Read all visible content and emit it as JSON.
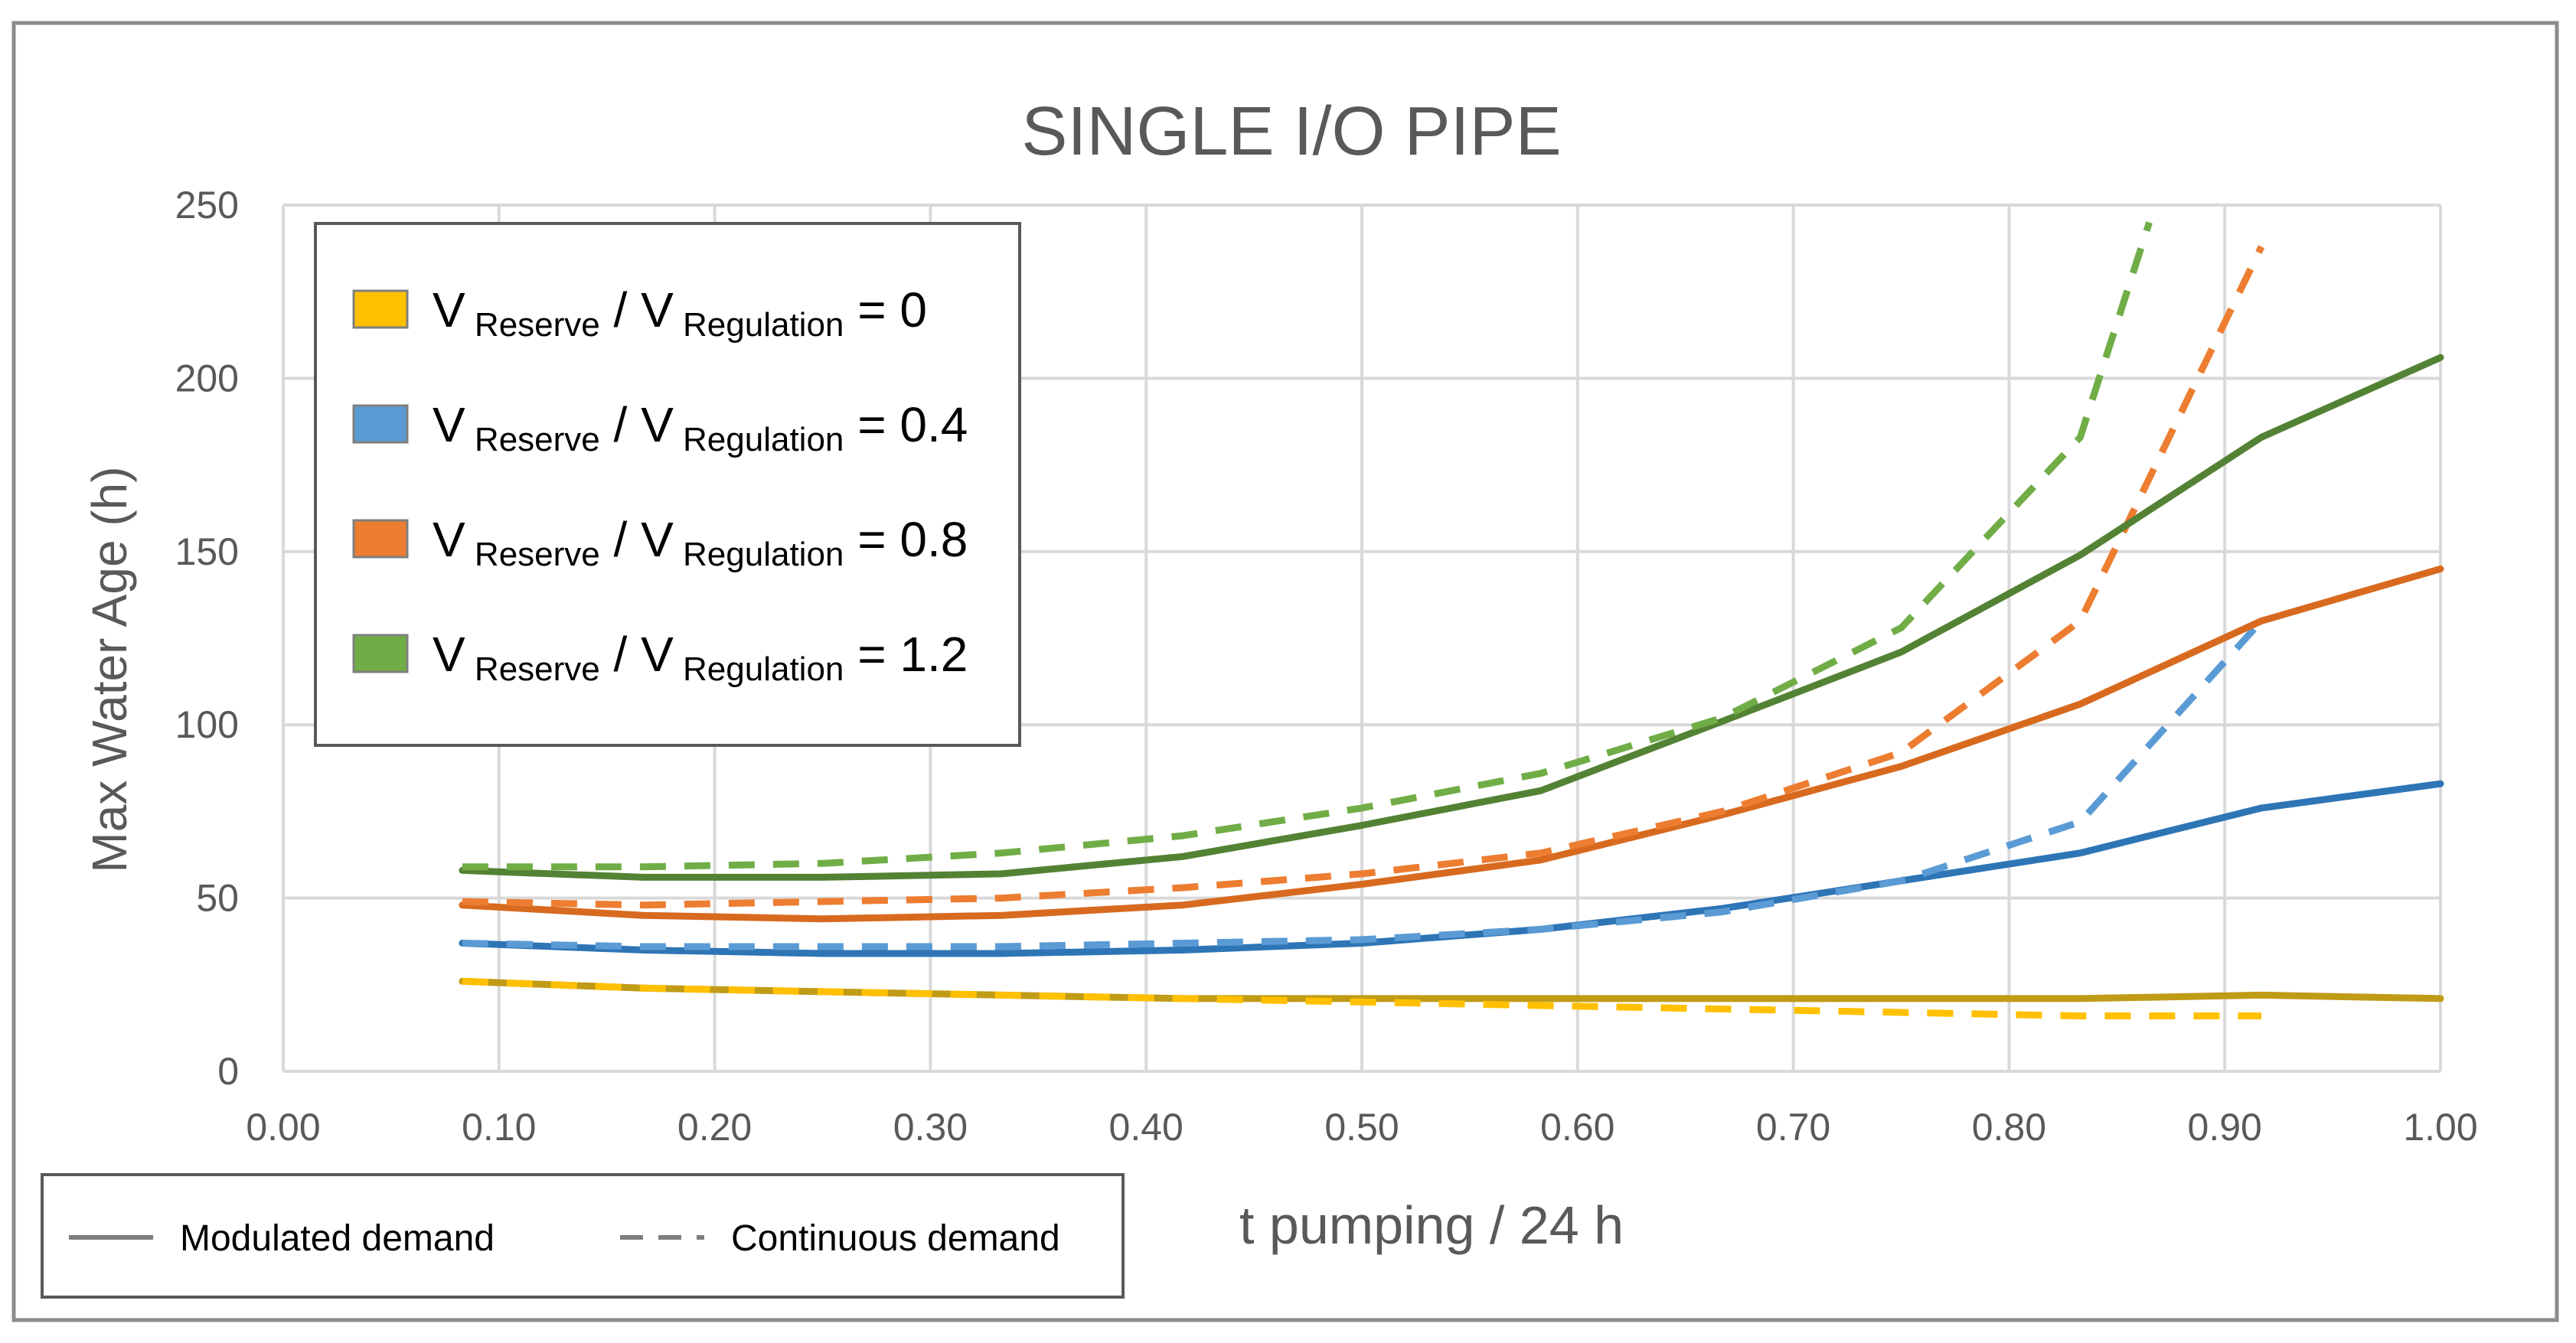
{
  "chart_data": {
    "type": "line",
    "title": "SINGLE I/O PIPE",
    "xlabel": "t pumping / 24 h",
    "ylabel": "Max Water Age (h)",
    "xlim": [
      0,
      1
    ],
    "ylim": [
      0,
      250
    ],
    "x_ticks": [
      "0.00",
      "0.10",
      "0.20",
      "0.30",
      "0.40",
      "0.50",
      "0.60",
      "0.70",
      "0.80",
      "0.90",
      "1.00"
    ],
    "y_ticks": [
      "0",
      "50",
      "100",
      "150",
      "200",
      "250"
    ],
    "grid": true,
    "legend_position": "top-left",
    "series_legend": [
      {
        "prefix": "V",
        "sub1": "Reserve",
        "mid": " / V",
        "sub2": "Regulation",
        "suffix": " = 0",
        "color": "#FFC000"
      },
      {
        "prefix": "V",
        "sub1": "Reserve",
        "mid": " / V",
        "sub2": "Regulation",
        "suffix": " = 0.4",
        "color": "#5B9BD5"
      },
      {
        "prefix": "V",
        "sub1": "Reserve",
        "mid": " / V",
        "sub2": "Regulation",
        "suffix": " = 0.8",
        "color": "#ED7D31"
      },
      {
        "prefix": "V",
        "sub1": "Reserve",
        "mid": " / V",
        "sub2": "Regulation",
        "suffix": " = 1.2",
        "color": "#70AD47"
      }
    ],
    "style_legend": [
      {
        "label": "Modulated demand",
        "style": "solid"
      },
      {
        "label": "Continuous demand",
        "style": "dashed"
      }
    ],
    "series": [
      {
        "name": "V Reserve / V Regulation = 0 (modulated)",
        "group": 0,
        "style": "solid",
        "color": "#C09B16",
        "x": [
          0.083,
          0.167,
          0.25,
          0.333,
          0.417,
          0.5,
          0.583,
          0.667,
          0.75,
          0.833,
          0.917,
          1.0
        ],
        "y": [
          26,
          24,
          23,
          22,
          21,
          21,
          21,
          21,
          21,
          21,
          22,
          21
        ]
      },
      {
        "name": "V Reserve / V Regulation = 0 (continuous)",
        "group": 0,
        "style": "dashed",
        "color": "#FFC000",
        "x": [
          0.083,
          0.167,
          0.25,
          0.333,
          0.417,
          0.5,
          0.583,
          0.667,
          0.75,
          0.833,
          0.917
        ],
        "y": [
          26,
          24,
          23,
          22,
          21,
          20,
          19,
          18,
          17,
          16,
          16
        ]
      },
      {
        "name": "V Reserve / V Regulation = 0.4 (modulated)",
        "group": 1,
        "style": "solid",
        "color": "#2E75B6",
        "x": [
          0.083,
          0.167,
          0.25,
          0.333,
          0.417,
          0.5,
          0.583,
          0.667,
          0.75,
          0.833,
          0.917,
          1.0
        ],
        "y": [
          37,
          35,
          34,
          34,
          35,
          37,
          41,
          47,
          55,
          63,
          76,
          83
        ]
      },
      {
        "name": "V Reserve / V Regulation = 0.4 (continuous)",
        "group": 1,
        "style": "dashed",
        "color": "#5B9BD5",
        "x": [
          0.083,
          0.167,
          0.25,
          0.333,
          0.417,
          0.5,
          0.583,
          0.667,
          0.75,
          0.833,
          0.917
        ],
        "y": [
          37,
          36,
          36,
          36,
          37,
          38,
          41,
          46,
          55,
          72,
          130
        ]
      },
      {
        "name": "V Reserve / V Regulation = 0.8 (modulated)",
        "group": 2,
        "style": "solid",
        "color": "#D86A1F",
        "x": [
          0.083,
          0.167,
          0.25,
          0.333,
          0.417,
          0.5,
          0.583,
          0.667,
          0.75,
          0.833,
          0.917,
          1.0
        ],
        "y": [
          48,
          45,
          44,
          45,
          48,
          54,
          61,
          74,
          88,
          106,
          130,
          145
        ]
      },
      {
        "name": "V Reserve / V Regulation = 0.8 (continuous)",
        "group": 2,
        "style": "dashed",
        "color": "#ED7D31",
        "x": [
          0.083,
          0.167,
          0.25,
          0.333,
          0.417,
          0.5,
          0.583,
          0.667,
          0.75,
          0.833,
          0.917
        ],
        "y": [
          49,
          48,
          49,
          50,
          53,
          57,
          63,
          75,
          92,
          130,
          238
        ]
      },
      {
        "name": "V Reserve / V Regulation = 1.2 (modulated)",
        "group": 3,
        "style": "solid",
        "color": "#548235",
        "x": [
          0.083,
          0.167,
          0.25,
          0.333,
          0.417,
          0.5,
          0.583,
          0.667,
          0.75,
          0.833,
          0.917,
          1.0
        ],
        "y": [
          58,
          56,
          56,
          57,
          62,
          71,
          81,
          101,
          121,
          149,
          183,
          206
        ]
      },
      {
        "name": "V Reserve / V Regulation = 1.2 (continuous)",
        "group": 3,
        "style": "dashed",
        "color": "#70AD47",
        "x": [
          0.083,
          0.167,
          0.25,
          0.333,
          0.417,
          0.5,
          0.583,
          0.667,
          0.75,
          0.833,
          0.865
        ],
        "y": [
          59,
          59,
          60,
          63,
          68,
          76,
          86,
          102,
          128,
          183,
          245
        ]
      }
    ]
  }
}
